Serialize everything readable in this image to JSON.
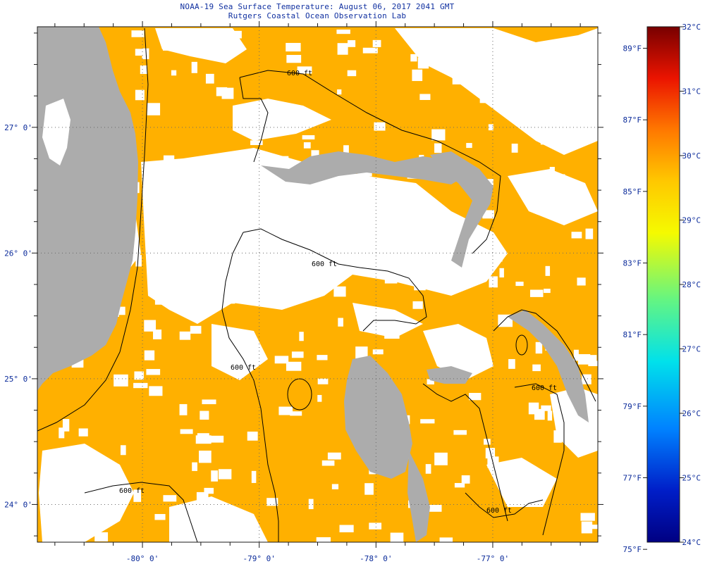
{
  "title": "NOAA-19 Sea Surface Temperature:  August 06, 2017 2041 GMT",
  "subtitle": "Rutgers Coastal Ocean Observation Lab",
  "chart_data": {
    "type": "heatmap",
    "title": "NOAA-19 Sea Surface Temperature:  August 06, 2017 2041 GMT",
    "subtitle": "Rutgers Coastal Ocean Observation Lab",
    "xlim": [
      -80.9,
      -76.1
    ],
    "ylim": [
      23.7,
      27.8
    ],
    "x_ticks": [
      {
        "value": -80,
        "label": "-80° 0'"
      },
      {
        "value": -79,
        "label": "-79° 0'"
      },
      {
        "value": -78,
        "label": "-78° 0'"
      },
      {
        "value": -77,
        "label": "-77° 0'"
      }
    ],
    "y_ticks": [
      {
        "value": 27,
        "label": "27° 0'"
      },
      {
        "value": 26,
        "label": "26° 0'"
      },
      {
        "value": 25,
        "label": "25° 0'"
      },
      {
        "value": 24,
        "label": "24° 0'"
      }
    ],
    "grid": true,
    "contour_labels": [
      "600 ft",
      "600 ft",
      "600 ft",
      "600 ft",
      "600 ft",
      "600 ft"
    ],
    "colorbar": {
      "min_c": 24,
      "max_c": 32,
      "celsius_ticks": [
        {
          "value": 24,
          "label": "24°C"
        },
        {
          "value": 25,
          "label": "25°C"
        },
        {
          "value": 26,
          "label": "26°C"
        },
        {
          "value": 27,
          "label": "27°C"
        },
        {
          "value": 28,
          "label": "28°C"
        },
        {
          "value": 29,
          "label": "29°C"
        },
        {
          "value": 30,
          "label": "30°C"
        },
        {
          "value": 31,
          "label": "31°C"
        },
        {
          "value": 32,
          "label": "32°C"
        }
      ],
      "fahrenheit_ticks": [
        {
          "value": 75,
          "label": "75°F"
        },
        {
          "value": 77,
          "label": "77°F"
        },
        {
          "value": 79,
          "label": "79°F"
        },
        {
          "value": 81,
          "label": "81°F"
        },
        {
          "value": 83,
          "label": "83°F"
        },
        {
          "value": 85,
          "label": "85°F"
        },
        {
          "value": 87,
          "label": "87°F"
        },
        {
          "value": 89,
          "label": "89°F"
        }
      ]
    },
    "colors": {
      "land": "#acacac",
      "no_data": "#ffffff",
      "contour": "#000000",
      "grid": "#2a2a5a",
      "text": "#0a2a9a"
    }
  }
}
